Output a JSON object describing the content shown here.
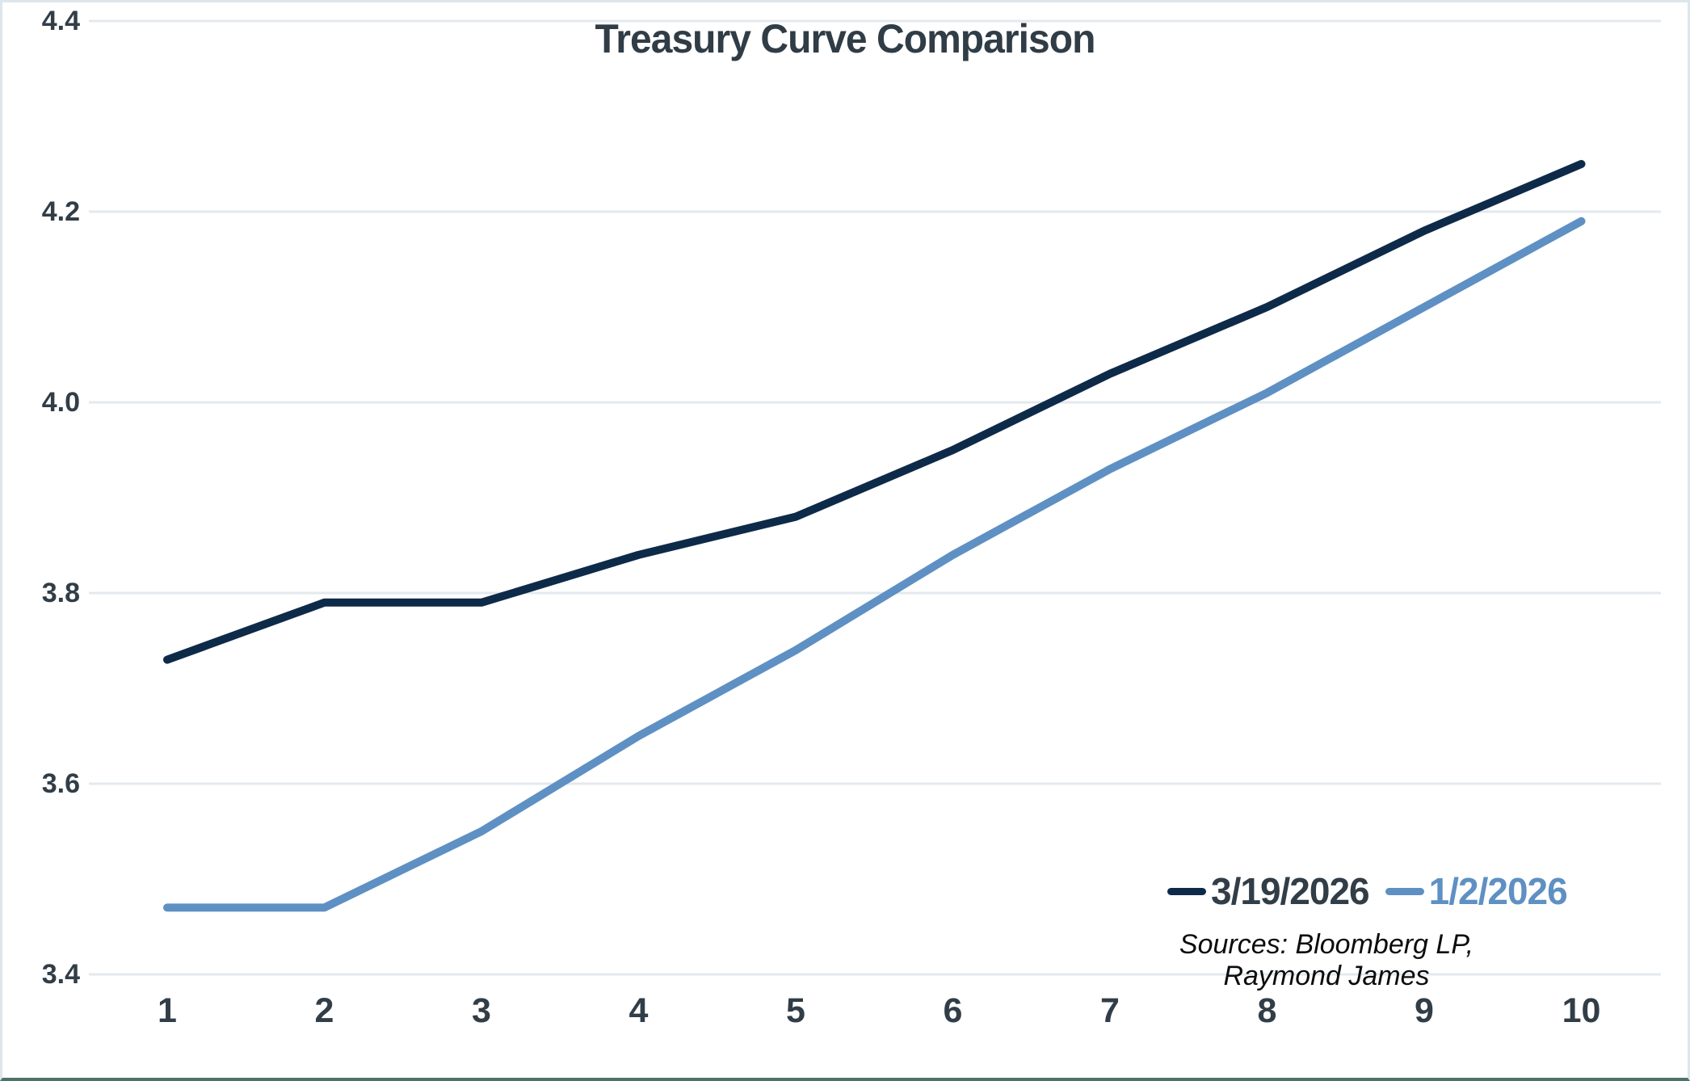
{
  "chart_data": {
    "type": "line",
    "title": "Treasury Curve Comparison",
    "x": [
      1,
      2,
      3,
      4,
      5,
      6,
      7,
      8,
      9,
      10
    ],
    "x_tick_labels": [
      "1",
      "2",
      "3",
      "4",
      "5",
      "6",
      "7",
      "8",
      "9",
      "10"
    ],
    "series": [
      {
        "name": "3/19/2026",
        "color": "#0e2a49",
        "values": [
          3.73,
          3.79,
          3.79,
          3.84,
          3.88,
          3.95,
          4.03,
          4.1,
          4.18,
          4.25
        ]
      },
      {
        "name": "1/2/2026",
        "color": "#5e90c3",
        "values": [
          3.47,
          3.47,
          3.55,
          3.65,
          3.74,
          3.84,
          3.93,
          4.01,
          4.1,
          4.19
        ]
      }
    ],
    "ylim": [
      3.4,
      4.4
    ],
    "y_ticks": [
      4.4,
      4.2,
      4.0,
      3.8,
      3.6,
      3.4
    ],
    "grid": "horizontal-only",
    "legend_position": "bottom-right-inside",
    "source_note": "Sources: Bloomberg LP, Raymond James"
  },
  "colors": {
    "background": "#ffffff",
    "gridline": "#e3e9ee",
    "text": "#313d47",
    "title": "#303c46",
    "border": "#dce6ec",
    "bottom_bar": "#4e7268"
  }
}
